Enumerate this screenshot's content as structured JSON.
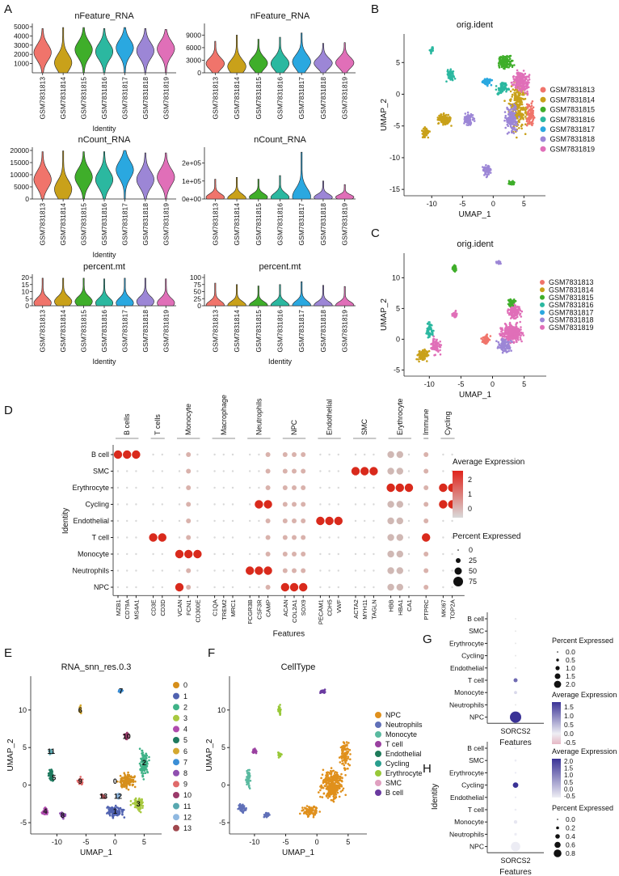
{
  "samples": [
    "GSM7831813",
    "GSM7831814",
    "GSM7831815",
    "GSM7831816",
    "GSM7831817",
    "GSM7831818",
    "GSM7831819"
  ],
  "sample_colors": [
    "#F0746B",
    "#C9A11A",
    "#3FAE2A",
    "#2BB8A0",
    "#2AA8E0",
    "#9C86D6",
    "#E06FB8"
  ],
  "panel_labels": {
    "A": "A",
    "B": "B",
    "C": "C",
    "D": "D",
    "E": "E",
    "F": "F",
    "G": "G",
    "H": "H"
  },
  "chart_data": [
    {
      "type": "violin",
      "panel": "A",
      "title": "nFeature_RNA",
      "xlabel": "Identity",
      "ylim": [
        0,
        5000
      ],
      "yticks": [
        "1000",
        "2000",
        "3000",
        "4000",
        "5000"
      ],
      "categories": [
        "GSM7831813",
        "GSM7831814",
        "GSM7831815",
        "GSM7831816",
        "GSM7831817",
        "GSM7831818",
        "GSM7831819"
      ],
      "medians": [
        2200,
        1100,
        2500,
        2300,
        2700,
        2400,
        2600
      ],
      "max": [
        4800,
        4900,
        4900,
        4800,
        4900,
        4800,
        4700
      ]
    },
    {
      "type": "violin",
      "panel": "A",
      "title": "nFeature_RNA",
      "xlabel": "",
      "ylim": [
        0,
        11000
      ],
      "yticks": [
        "0",
        "3000",
        "6000",
        "9000"
      ],
      "categories": [
        "GSM7831813",
        "GSM7831814",
        "GSM7831815",
        "GSM7831816",
        "GSM7831817",
        "GSM7831818",
        "GSM7831819"
      ],
      "medians": [
        2200,
        1500,
        2300,
        2200,
        2600,
        2300,
        2400
      ],
      "max": [
        7500,
        9000,
        8000,
        8500,
        9500,
        7000,
        7200
      ]
    },
    {
      "type": "violin",
      "panel": "A",
      "title": "nCount_RNA",
      "xlabel": "Identity",
      "ylim": [
        0,
        20000
      ],
      "yticks": [
        "0",
        "5000",
        "10000",
        "15000",
        "20000"
      ],
      "categories": [
        "GSM7831813",
        "GSM7831814",
        "GSM7831815",
        "GSM7831816",
        "GSM7831817",
        "GSM7831818",
        "GSM7831819"
      ],
      "medians": [
        8000,
        4000,
        9000,
        8000,
        12000,
        8000,
        9000
      ],
      "max": [
        19500,
        19800,
        19500,
        19500,
        20000,
        19000,
        19000
      ]
    },
    {
      "type": "violin",
      "panel": "A",
      "title": "nCount_RNA",
      "xlabel": "",
      "ylim": [
        0,
        270000
      ],
      "yticks": [
        "0e+00",
        "1e+05",
        "2e+05"
      ],
      "categories": [
        "GSM7831813",
        "GSM7831814",
        "GSM7831815",
        "GSM7831816",
        "GSM7831817",
        "GSM7831818",
        "GSM7831819"
      ],
      "medians": [
        9000,
        5000,
        10000,
        9000,
        13000,
        9000,
        10000
      ],
      "max": [
        110000,
        120000,
        110000,
        130000,
        260000,
        100000,
        80000
      ]
    },
    {
      "type": "violin",
      "panel": "A",
      "title": "percent.mt",
      "xlabel": "Identity",
      "ylim": [
        0,
        20
      ],
      "yticks": [
        "0",
        "5",
        "10",
        "15",
        "20"
      ],
      "categories": [
        "GSM7831813",
        "GSM7831814",
        "GSM7831815",
        "GSM7831816",
        "GSM7831817",
        "GSM7831818",
        "GSM7831819"
      ],
      "medians": [
        2,
        3,
        3,
        2,
        2,
        3,
        2
      ],
      "max": [
        19.5,
        19.5,
        19.5,
        19,
        19.5,
        19.5,
        19
      ]
    },
    {
      "type": "violin",
      "panel": "A",
      "title": "percent.mt",
      "xlabel": "Identity",
      "ylim": [
        0,
        100
      ],
      "yticks": [
        "0",
        "25",
        "50",
        "75",
        "100"
      ],
      "categories": [
        "GSM7831813",
        "GSM7831814",
        "GSM7831815",
        "GSM7831816",
        "GSM7831817",
        "GSM7831818",
        "GSM7831819"
      ],
      "medians": [
        2,
        2,
        2,
        2,
        2,
        2,
        2
      ],
      "max": [
        80,
        75,
        70,
        75,
        85,
        72,
        68
      ]
    },
    {
      "type": "scatter",
      "panel": "B",
      "title": "orig.ident",
      "xlabel": "UMAP_1",
      "ylabel": "UMAP_2",
      "xticks": [
        "-10",
        "-5",
        "0",
        "5"
      ],
      "yticks": [
        "5",
        "0",
        "-5",
        "-10",
        "-15"
      ],
      "legend": [
        "GSM7831813",
        "GSM7831814",
        "GSM7831815",
        "GSM7831816",
        "GSM7831817",
        "GSM7831818",
        "GSM7831819"
      ]
    },
    {
      "type": "scatter",
      "panel": "C",
      "title": "orig.ident",
      "xlabel": "UMAP_1",
      "ylabel": "UMAP_2",
      "xticks": [
        "-10",
        "-5",
        "0",
        "5"
      ],
      "yticks": [
        "10",
        "5",
        "0",
        "-5"
      ],
      "legend": [
        "GSM7831813",
        "GSM7831814",
        "GSM7831815",
        "GSM7831816",
        "GSM7831817",
        "GSM7831818",
        "GSM7831819"
      ]
    },
    {
      "type": "dotplot",
      "panel": "D",
      "xlabel": "Features",
      "ylabel": "Identity",
      "groups": [
        {
          "name": "B cells",
          "genes": [
            "MZB1",
            "CD79A",
            "MS4A1"
          ]
        },
        {
          "name": "T cells",
          "genes": [
            "CD3E",
            "CD3D"
          ]
        },
        {
          "name": "Monocyte",
          "genes": [
            "VCAN",
            "FCN1",
            "CD300E"
          ]
        },
        {
          "name": "Macrophage",
          "genes": [
            "C1QA",
            "TREM2",
            "MRC1"
          ]
        },
        {
          "name": "Neutrophils",
          "genes": [
            "FCGR3B",
            "CSF3R",
            "CAMP"
          ]
        },
        {
          "name": "NPC",
          "genes": [
            "ACAN",
            "COL2A1",
            "SOX9"
          ]
        },
        {
          "name": "Endothelial",
          "genes": [
            "PECAM1",
            "CDH5",
            "VWF"
          ]
        },
        {
          "name": "SMC",
          "genes": [
            "ACTA2",
            "MYH11",
            "TAGLN"
          ]
        },
        {
          "name": "Erythrocyte",
          "genes": [
            "HBB",
            "HBA1",
            "CA1"
          ]
        },
        {
          "name": "Immune",
          "genes": [
            "PTPRC"
          ]
        },
        {
          "name": "Cycling",
          "genes": [
            "MKI67",
            "TOP2A"
          ]
        }
      ],
      "rows": [
        "B cell",
        "SMC",
        "Erythrocyte",
        "Cycling",
        "Endothelial",
        "T cell",
        "Monocyte",
        "Neutrophils",
        "NPC"
      ],
      "legend_expr_title": "Average Expression",
      "legend_expr_ticks": [
        "2",
        "1",
        "0"
      ],
      "legend_pct_title": "Percent Expressed",
      "legend_pct_ticks": [
        "0",
        "25",
        "50",
        "75"
      ],
      "markers": {
        "B cell": [
          "MZB1",
          "CD79A",
          "MS4A1"
        ],
        "SMC": [
          "ACTA2",
          "MYH11",
          "TAGLN"
        ],
        "Erythrocyte": [
          "HBB",
          "HBA1",
          "CA1",
          "MKI67",
          "TOP2A"
        ],
        "Cycling": [
          "CAMP",
          "CSF3R",
          "MKI67",
          "TOP2A"
        ],
        "Endothelial": [
          "PECAM1",
          "CDH5",
          "VWF"
        ],
        "T cell": [
          "CD3E",
          "CD3D",
          "PTPRC"
        ],
        "Monocyte": [
          "FCN1",
          "VCAN",
          "CD300E"
        ],
        "Neutrophils": [
          "FCGR3B",
          "CSF3R",
          "CAMP"
        ],
        "NPC": [
          "ACAN",
          "COL2A1",
          "SOX9",
          "VCAN"
        ]
      }
    },
    {
      "type": "scatter",
      "panel": "E",
      "title": "RNA_snn_res.0.3",
      "xlabel": "UMAP_1",
      "ylabel": "UMAP_2",
      "xticks": [
        "-10",
        "-5",
        "0",
        "5"
      ],
      "yticks": [
        "10",
        "5",
        "0",
        "-5"
      ],
      "legend": [
        "0",
        "1",
        "2",
        "3",
        "4",
        "5",
        "6",
        "7",
        "8",
        "9",
        "10",
        "11",
        "12",
        "13"
      ],
      "colors": [
        "#D68F1A",
        "#5062B0",
        "#3FB287",
        "#A8C940",
        "#B04BAE",
        "#1F7A5F",
        "#D4A830",
        "#3A8ED6",
        "#8F4FB0",
        "#E06A6A",
        "#9A3A6A",
        "#58A8B0",
        "#8FB8E0",
        "#A0484E"
      ]
    },
    {
      "type": "scatter",
      "panel": "F",
      "title": "CellType",
      "xlabel": "UMAP_1",
      "ylabel": "UMAP_2",
      "xticks": [
        "-10",
        "-5",
        "0",
        "5"
      ],
      "yticks": [
        "10",
        "5",
        "0",
        "-5"
      ],
      "legend": [
        "NPC",
        "Neutrophils",
        "Monocyte",
        "T cell",
        "Endothelial",
        "Cycling",
        "Erythrocyte",
        "SMC",
        "B cell"
      ],
      "colors": [
        "#E0901C",
        "#6070B8",
        "#5ABAA0",
        "#9A40A0",
        "#1E7A5A",
        "#2A9E8E",
        "#98C838",
        "#E0A0C0",
        "#6A3AA0"
      ]
    },
    {
      "type": "dotplot",
      "panel": "G",
      "xlabel": "Features",
      "genes": [
        "SORCS2"
      ],
      "rows": [
        "B cell",
        "SMC",
        "Erythrocyte",
        "Cycling",
        "Endothelial",
        "T cell",
        "Monocyte",
        "Neutrophils",
        "NPC"
      ],
      "avg_expr": [
        null,
        null,
        null,
        null,
        null,
        0.9,
        -0.3,
        null,
        1.5
      ],
      "pct": [
        0,
        0,
        0,
        0,
        0,
        0.5,
        0.3,
        0,
        2.0
      ],
      "legend_pct_title": "Percent Expressed",
      "legend_pct_ticks": [
        "0.0",
        "0.5",
        "1.0",
        "1.5",
        "2.0"
      ],
      "legend_expr_title": "Average Expression",
      "legend_expr_ticks": [
        "1.5",
        "1.0",
        "0.5",
        "0.0",
        "-0.5"
      ]
    },
    {
      "type": "dotplot",
      "panel": "H",
      "xlabel": "Features",
      "ylabel": "Identity",
      "genes": [
        "SORCS2"
      ],
      "rows": [
        "B cell",
        "SMC",
        "Erythrocyte",
        "Cycling",
        "Endothelial",
        "T cell",
        "Monocyte",
        "Neutrophils",
        "NPC"
      ],
      "avg_expr": [
        -0.5,
        -0.5,
        -0.5,
        2.4,
        -0.5,
        -0.5,
        -0.4,
        -0.5,
        -0.5
      ],
      "pct": [
        0.05,
        0.05,
        0.02,
        0.4,
        0.02,
        0.05,
        0.2,
        0.1,
        0.8
      ],
      "legend_expr_title": "Average Expression",
      "legend_expr_ticks": [
        "2.0",
        "1.5",
        "1.0",
        "0.5",
        "0.0",
        "-0.5"
      ],
      "legend_pct_title": "Percent Expressed",
      "legend_pct_ticks": [
        "0.0",
        "0.2",
        "0.4",
        "0.6",
        "0.8"
      ]
    }
  ]
}
